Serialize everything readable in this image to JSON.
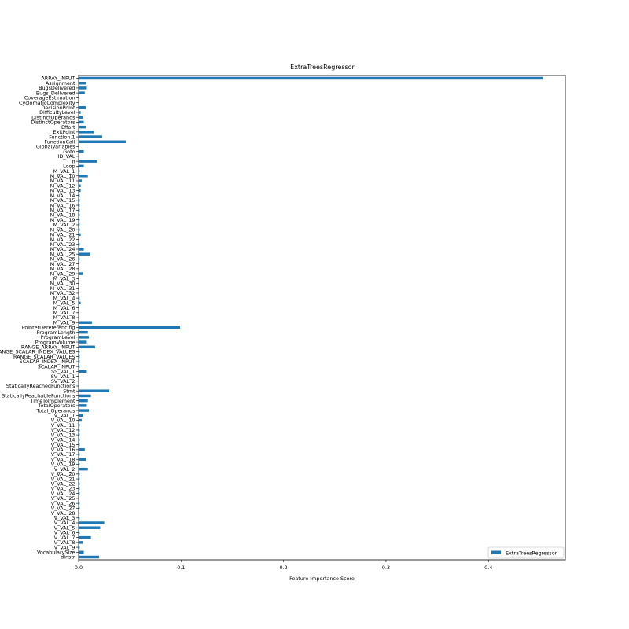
{
  "chart_data": {
    "type": "bar",
    "orientation": "horizontal",
    "title": "ExtraTreesRegressor",
    "xlabel": "Feature Importance Score",
    "ylabel": "",
    "xlim": [
      0,
      0.475
    ],
    "xticks": [
      0.0,
      0.1,
      0.2,
      0.3,
      0.4
    ],
    "xtick_labels": [
      "0.0",
      "0.1",
      "0.2",
      "0.3",
      "0.4"
    ],
    "legend": {
      "placement": "lower-right",
      "entries": [
        "ExtraTreesRegressor"
      ]
    },
    "bar_color": "#1f77b4",
    "categories": [
      "ARRAY_INPUT",
      "Assignment",
      "BugsDelivered",
      "Bugs_Delivered",
      "CoverageEstimation",
      "CyclomaticComplexity",
      "DecisionPoint",
      "DifficultyLevel",
      "DistinctOperands",
      "DistinctOperators",
      "Effort",
      "ExitPoint",
      "Function.1",
      "FunctionCall",
      "GlobalVariables",
      "Goto",
      "ID_VAL",
      "If",
      "Loop",
      "M_VAL_1",
      "M_VAL_10",
      "M_VAL_11",
      "M_VAL_12",
      "M_VAL_13",
      "M_VAL_14",
      "M_VAL_15",
      "M_VAL_16",
      "M_VAL_17",
      "M_VAL_18",
      "M_VAL_19",
      "M_VAL_2",
      "M_VAL_20",
      "M_VAL_21",
      "M_VAL_22",
      "M_VAL_23",
      "M_VAL_24",
      "M_VAL_25",
      "M_VAL_26",
      "M_VAL_27",
      "M_VAL_28",
      "M_VAL_29",
      "M_VAL_3",
      "M_VAL_30",
      "M_VAL_31",
      "M_VAL_32",
      "M_VAL_4",
      "M_VAL_5",
      "M_VAL_6",
      "M_VAL_7",
      "M_VAL_8",
      "M_VAL_9",
      "PointerDereferencing",
      "ProgramLength",
      "ProgramLevel",
      "ProgramVolume",
      "RANGE_ARRAY_INPUT",
      "RANGE_SCALAR_INDEX_VALUES",
      "RANGE_SCALAR_VALUES",
      "SCALAR_INDEX_INPUT",
      "SCALAR_INPUT",
      "SS_VAL_1",
      "SV_VAL_1",
      "SV_VAL_2",
      "StaticallyReachedFunctions",
      "Stmt",
      "StaticallyReachableFunctions",
      "TimeToImplement",
      "TotalOperators",
      "Total_Operands",
      "V_VAL_1",
      "V_VAL_10",
      "V_VAL_11",
      "V_VAL_12",
      "V_VAL_13",
      "V_VAL_14",
      "V_VAL_15",
      "V_VAL_16",
      "V_VAL_17",
      "V_VAL_18",
      "V_VAL_19",
      "V_VAL_2",
      "V_VAL_20",
      "V_VAL_21",
      "V_VAL_22",
      "V_VAL_23",
      "V_VAL_24",
      "V_VAL_25",
      "V_VAL_26",
      "V_VAL_27",
      "V_VAL_28",
      "V_VAL_3",
      "V_VAL_4",
      "V_VAL_5",
      "V_VAL_6",
      "V_VAL_7",
      "V_VAL_8",
      "V_VAL_9",
      "VocabularySize",
      "dinstr"
    ],
    "values": [
      0.453,
      0.007,
      0.008,
      0.006,
      0.0,
      0.0,
      0.007,
      0.002,
      0.004,
      0.005,
      0.007,
      0.015,
      0.023,
      0.046,
      0.0,
      0.005,
      0.0,
      0.018,
      0.005,
      0.001,
      0.009,
      0.003,
      0.002,
      0.002,
      0.001,
      0.001,
      0.001,
      0.001,
      0.001,
      0.001,
      0.001,
      0.001,
      0.002,
      0.0,
      0.001,
      0.005,
      0.011,
      0.001,
      0.0,
      0.0,
      0.004,
      0.0,
      0.0,
      0.0,
      0.0,
      0.001,
      0.002,
      0.0,
      0.0,
      0.0,
      0.013,
      0.099,
      0.009,
      0.01,
      0.008,
      0.016,
      0.001,
      0.001,
      0.001,
      0.001,
      0.008,
      0.0,
      0.0,
      0.0,
      0.03,
      0.012,
      0.009,
      0.008,
      0.01,
      0.004,
      0.003,
      0.001,
      0.001,
      0.001,
      0.001,
      0.001,
      0.006,
      0.001,
      0.007,
      0.001,
      0.009,
      0.001,
      0.001,
      0.001,
      0.001,
      0.001,
      0.0,
      0.001,
      0.001,
      0.0,
      0.001,
      0.025,
      0.021,
      0.001,
      0.012,
      0.004,
      0.001,
      0.005,
      0.02
    ]
  }
}
